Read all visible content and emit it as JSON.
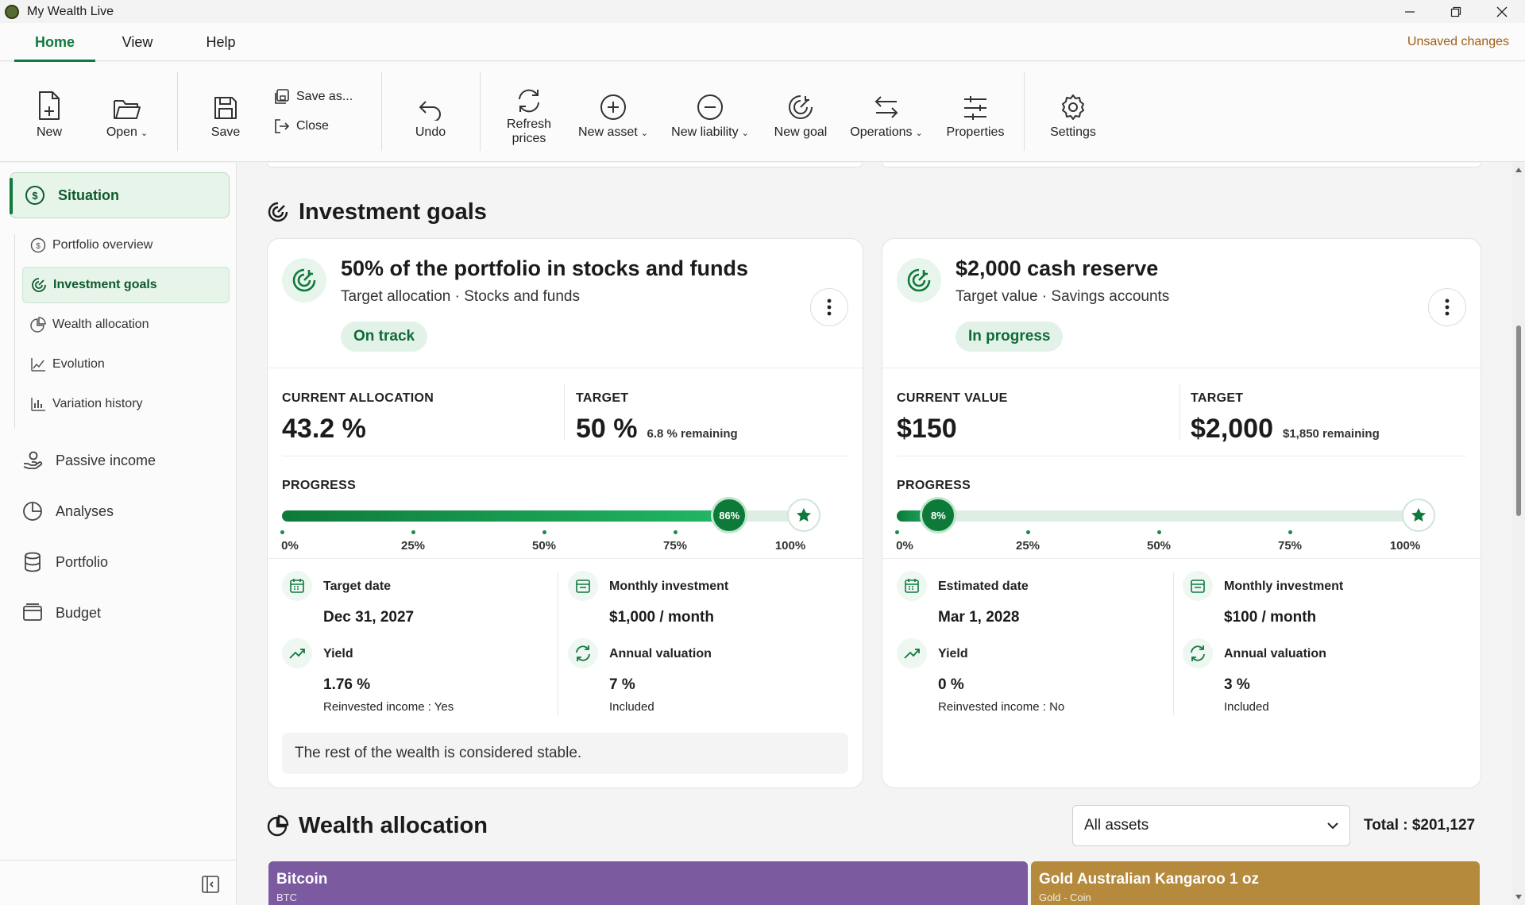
{
  "window": {
    "title": "My Wealth Live"
  },
  "menu": {
    "tabs": [
      {
        "label": "Home"
      },
      {
        "label": "View"
      },
      {
        "label": "Help"
      }
    ],
    "status": "Unsaved changes"
  },
  "ribbon": {
    "new": "New",
    "open": "Open",
    "save": "Save",
    "save_as": "Save as...",
    "close": "Close",
    "undo": "Undo",
    "refresh_1": "Refresh",
    "refresh_2": "prices",
    "new_asset": "New asset",
    "new_liability": "New liability",
    "new_goal": "New goal",
    "operations": "Operations",
    "properties": "Properties",
    "settings": "Settings"
  },
  "sidebar": {
    "main": "Situation",
    "subitems": [
      {
        "label": "Portfolio overview"
      },
      {
        "label": "Investment goals"
      },
      {
        "label": "Wealth allocation"
      },
      {
        "label": "Evolution"
      },
      {
        "label": "Variation history"
      }
    ],
    "items": [
      {
        "label": "Passive income"
      },
      {
        "label": "Analyses"
      },
      {
        "label": "Portfolio"
      },
      {
        "label": "Budget"
      }
    ]
  },
  "goals_section": {
    "title": "Investment goals"
  },
  "goals": [
    {
      "title": "50% of the portfolio in stocks and funds",
      "subtitle": "Target allocation · Stocks and funds",
      "status": "On track",
      "current_label": "CURRENT ALLOCATION",
      "current_value": "43.2 %",
      "target_label": "TARGET",
      "target_value": "50 %",
      "remaining": "6.8 % remaining",
      "progress_label": "PROGRESS",
      "progress_percent": 86,
      "progress_text": "86%",
      "ticks": [
        "0%",
        "25%",
        "50%",
        "75%",
        "100%"
      ],
      "date_label": "Target date",
      "date_value": "Dec 31, 2027",
      "monthly_label": "Monthly investment",
      "monthly_value": "$1,000 / month",
      "yield_label": "Yield",
      "yield_value": "1.76 %",
      "yield_note": "Reinvested income : Yes",
      "valuation_label": "Annual valuation",
      "valuation_value": "7 %",
      "valuation_note": "Included",
      "note": "The rest of the wealth is considered stable."
    },
    {
      "title": "$2,000 cash reserve",
      "subtitle": "Target value · Savings accounts",
      "status": "In progress",
      "current_label": "CURRENT VALUE",
      "current_value": "$150",
      "target_label": "TARGET",
      "target_value": "$2,000",
      "remaining": "$1,850 remaining",
      "progress_label": "PROGRESS",
      "progress_percent": 8,
      "progress_text": "8%",
      "ticks": [
        "0%",
        "25%",
        "50%",
        "75%",
        "100%"
      ],
      "date_label": "Estimated date",
      "date_value": "Mar 1, 2028",
      "monthly_label": "Monthly investment",
      "monthly_value": "$100 / month",
      "yield_label": "Yield",
      "yield_value": "0 %",
      "yield_note": "Reinvested income : No",
      "valuation_label": "Annual valuation",
      "valuation_value": "3 %",
      "valuation_note": "Included"
    }
  ],
  "allocation": {
    "title": "Wealth allocation",
    "filter": "All assets",
    "total": "Total : $201,127",
    "tiles": [
      {
        "name": "Bitcoin",
        "sub": "BTC",
        "color": "#7b5aa0"
      },
      {
        "name": "Gold Australian Kangaroo 1 oz",
        "sub": "Gold - Coin",
        "color": "#b58a3c"
      }
    ]
  },
  "colors": {
    "accent": "#0f7a3d",
    "accent_light": "#e6f4ea",
    "status_warning": "#a15c14"
  }
}
